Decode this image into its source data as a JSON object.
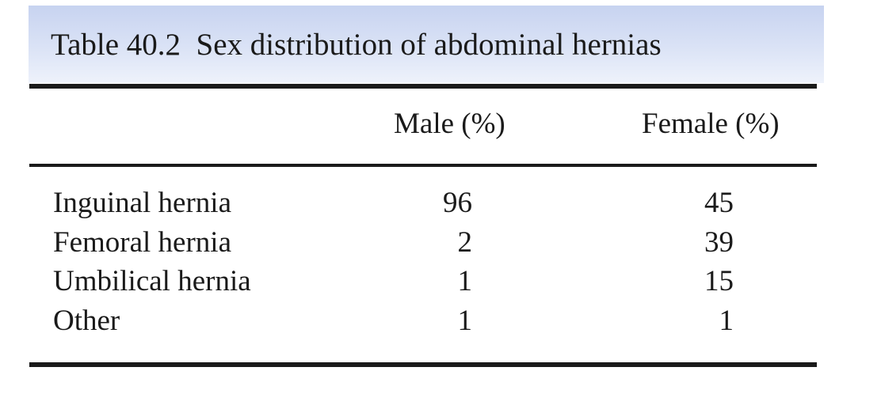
{
  "caption": "Table 40.2  Sex distribution of abdominal hernias",
  "columns": {
    "label": "",
    "male": "Male (%)",
    "female": "Female (%)"
  },
  "rows": [
    {
      "label": "Inguinal hernia",
      "male": "96",
      "female": "45"
    },
    {
      "label": "Femoral hernia",
      "male": "2",
      "female": "39"
    },
    {
      "label": "Umbilical hernia",
      "male": "1",
      "female": "15"
    },
    {
      "label": "Other",
      "male": "1",
      "female": "1"
    }
  ]
}
